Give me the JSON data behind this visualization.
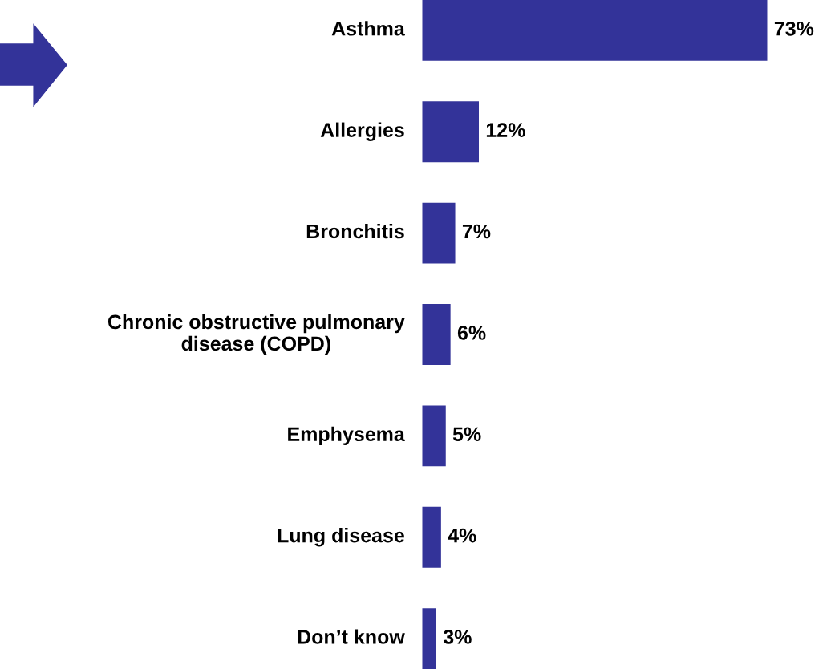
{
  "chart_data": {
    "type": "bar",
    "orientation": "horizontal",
    "categories": [
      "Asthma",
      "Allergies",
      "Bronchitis",
      "Chronic obstructive pulmonary\ndisease (COPD)",
      "Emphysema",
      "Lung disease",
      "Don’t know"
    ],
    "values": [
      73,
      12,
      7,
      6,
      5,
      4,
      3
    ],
    "value_labels": [
      "73%",
      "12%",
      "7%",
      "6%",
      "5%",
      "4%",
      "3%"
    ],
    "color": "#333399"
  }
}
